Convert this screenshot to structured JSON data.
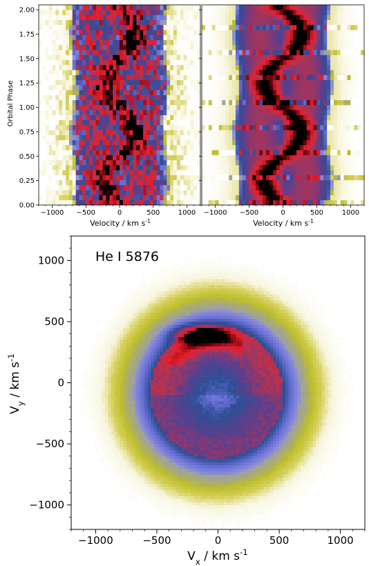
{
  "figure": {
    "panels": {
      "observed_trailed_spectra": {
        "xlabel": "Velocity / km s$^{-1}$",
        "ylabel": "Orbital Phase"
      },
      "reconstructed_trailed_spectra": {
        "xlabel": "Velocity / km s$^{-1}$"
      },
      "doppler_map": {
        "label": "He I 5876",
        "xlabel": "V$_x$ / km s$^{-1}$",
        "ylabel": "V$_y$ / km s$^{-1}$"
      }
    }
  },
  "colors": {
    "colormap": [
      "#ffffff",
      "#f7f5dc",
      "#d6d05a",
      "#bcbd2a",
      "#8f93d6",
      "#6b70d8",
      "#2d4f94",
      "#5a3f8f",
      "#c0304a",
      "#e81c2b",
      "#8a0a12",
      "#000000"
    ]
  },
  "chart_data": [
    {
      "type": "heatmap",
      "panel": "observed_trailed_spectra",
      "xlabel": "Velocity / km s$^{-1}$",
      "ylabel": "Orbital Phase",
      "xlim": [
        -1200,
        1200
      ],
      "ylim": [
        0,
        2.05
      ],
      "xticks": [
        -1000,
        -500,
        0,
        500,
        1000
      ],
      "yticks": [
        0.0,
        0.25,
        0.5,
        0.75,
        1.0,
        1.25,
        1.5,
        1.75,
        2.0
      ],
      "ytick_labels": [
        "0.00",
        "0.25",
        "0.50",
        "0.75",
        "1.00",
        "1.25",
        "1.50",
        "1.75",
        "2.00"
      ],
      "n_phase_bins": 40,
      "profile": {
        "center_kms": 0,
        "half_width_kms": 700,
        "peak_separation_kms": 500
      }
    },
    {
      "type": "heatmap",
      "panel": "reconstructed_trailed_spectra",
      "xlabel": "Velocity / km s$^{-1}$",
      "xlim": [
        -1200,
        1200
      ],
      "ylim": [
        0,
        2.05
      ],
      "xticks": [
        -1000,
        -500,
        0,
        500,
        1000
      ],
      "yticks": [
        0.0,
        0.25,
        0.5,
        0.75,
        1.0,
        1.25,
        1.5,
        1.75,
        2.0
      ],
      "n_phase_bins": 40,
      "s_wave": {
        "amplitude_kms": 280,
        "phase_of_max_redshift": 0.75
      }
    },
    {
      "type": "heatmap",
      "panel": "doppler_map",
      "label": "He I 5876",
      "xlabel": "V$_x$ / km s$^{-1}$",
      "ylabel": "V$_y$ / km s$^{-1}$",
      "xlim": [
        -1200,
        1200
      ],
      "ylim": [
        -1200,
        1200
      ],
      "xticks": [
        -1000,
        -500,
        0,
        500,
        1000
      ],
      "yticks": [
        -1000,
        -500,
        0,
        500,
        1000
      ],
      "xtick_labels": [
        "−1000",
        "−500",
        "0",
        "500",
        "1000"
      ],
      "ytick_labels": [
        "−1000",
        "−500",
        "0",
        "500",
        "1000"
      ],
      "disc_ring_radius_kms": 600,
      "bright_spot": {
        "vx": -130,
        "vy": 390
      }
    }
  ]
}
